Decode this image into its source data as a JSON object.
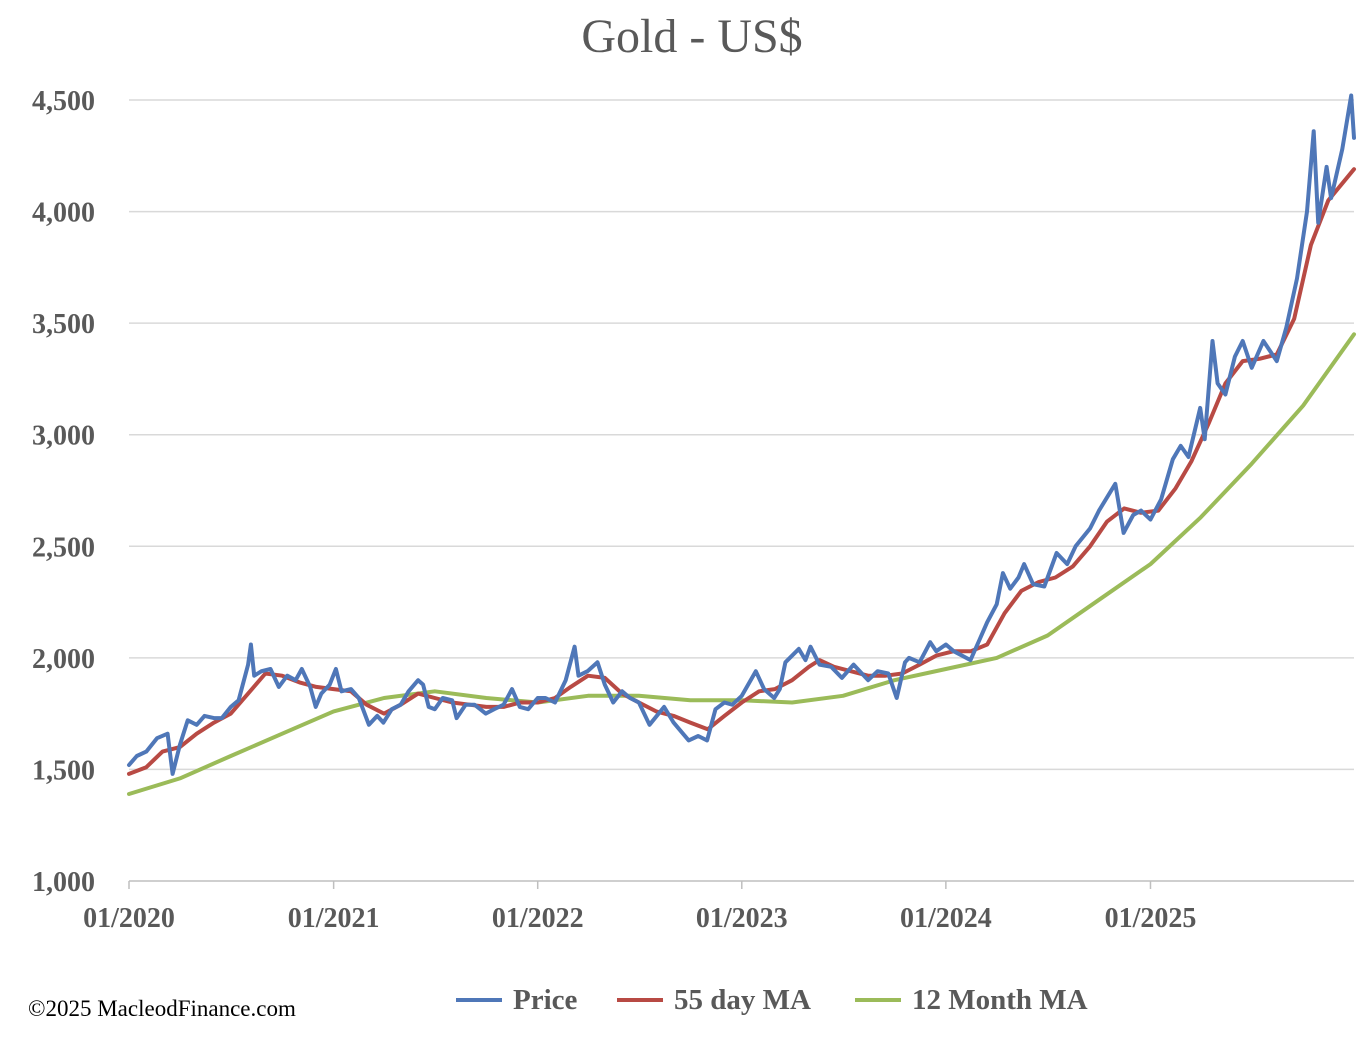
{
  "chart_data": {
    "type": "line",
    "title": "Gold - US$",
    "xlabel": "",
    "ylabel": "",
    "ylim": [
      1000,
      4500
    ],
    "yticks": [
      1000,
      1500,
      2000,
      2500,
      3000,
      3500,
      4000,
      4500
    ],
    "ytick_labels": [
      "1,000",
      "1,500",
      "2,000",
      "2,500",
      "3,000",
      "3,500",
      "4,000",
      "4,500"
    ],
    "xlim": [
      "2020-01-01",
      "2025-12-31"
    ],
    "xticks": [
      "2020-01-01",
      "2021-01-01",
      "2022-01-01",
      "2023-01-01",
      "2024-01-01",
      "2025-01-01"
    ],
    "xtick_labels": [
      "01/2020",
      "01/2021",
      "01/2022",
      "01/2023",
      "01/2024",
      "01/2025"
    ],
    "grid": "horizontal",
    "legend_position": "bottom",
    "series": [
      {
        "name": "Price",
        "color": "#4f77b8",
        "points": [
          [
            "2020-01-01",
            1520
          ],
          [
            "2020-01-15",
            1560
          ],
          [
            "2020-02-01",
            1580
          ],
          [
            "2020-02-20",
            1640
          ],
          [
            "2020-03-10",
            1660
          ],
          [
            "2020-03-19",
            1480
          ],
          [
            "2020-04-01",
            1610
          ],
          [
            "2020-04-15",
            1720
          ],
          [
            "2020-05-01",
            1700
          ],
          [
            "2020-05-15",
            1740
          ],
          [
            "2020-06-01",
            1730
          ],
          [
            "2020-06-15",
            1730
          ],
          [
            "2020-07-01",
            1780
          ],
          [
            "2020-07-15",
            1810
          ],
          [
            "2020-08-01",
            1970
          ],
          [
            "2020-08-06",
            2060
          ],
          [
            "2020-08-12",
            1920
          ],
          [
            "2020-08-25",
            1940
          ],
          [
            "2020-09-10",
            1950
          ],
          [
            "2020-09-25",
            1870
          ],
          [
            "2020-10-10",
            1920
          ],
          [
            "2020-10-25",
            1900
          ],
          [
            "2020-11-05",
            1950
          ],
          [
            "2020-11-20",
            1870
          ],
          [
            "2020-11-30",
            1780
          ],
          [
            "2020-12-10",
            1840
          ],
          [
            "2020-12-25",
            1880
          ],
          [
            "2021-01-05",
            1950
          ],
          [
            "2021-01-15",
            1850
          ],
          [
            "2021-02-01",
            1860
          ],
          [
            "2021-02-15",
            1820
          ],
          [
            "2021-03-05",
            1700
          ],
          [
            "2021-03-20",
            1740
          ],
          [
            "2021-03-31",
            1710
          ],
          [
            "2021-04-15",
            1770
          ],
          [
            "2021-05-01",
            1790
          ],
          [
            "2021-05-15",
            1850
          ],
          [
            "2021-06-01",
            1900
          ],
          [
            "2021-06-10",
            1880
          ],
          [
            "2021-06-20",
            1780
          ],
          [
            "2021-07-01",
            1770
          ],
          [
            "2021-07-15",
            1820
          ],
          [
            "2021-08-01",
            1810
          ],
          [
            "2021-08-09",
            1730
          ],
          [
            "2021-08-25",
            1790
          ],
          [
            "2021-09-10",
            1790
          ],
          [
            "2021-09-30",
            1750
          ],
          [
            "2021-10-15",
            1770
          ],
          [
            "2021-11-01",
            1790
          ],
          [
            "2021-11-16",
            1860
          ],
          [
            "2021-11-30",
            1780
          ],
          [
            "2021-12-15",
            1770
          ],
          [
            "2022-01-01",
            1820
          ],
          [
            "2022-01-15",
            1820
          ],
          [
            "2022-02-01",
            1800
          ],
          [
            "2022-02-20",
            1900
          ],
          [
            "2022-03-08",
            2050
          ],
          [
            "2022-03-15",
            1920
          ],
          [
            "2022-03-31",
            1940
          ],
          [
            "2022-04-18",
            1980
          ],
          [
            "2022-05-01",
            1880
          ],
          [
            "2022-05-16",
            1800
          ],
          [
            "2022-06-01",
            1850
          ],
          [
            "2022-06-15",
            1820
          ],
          [
            "2022-07-01",
            1800
          ],
          [
            "2022-07-20",
            1700
          ],
          [
            "2022-08-15",
            1780
          ],
          [
            "2022-09-01",
            1710
          ],
          [
            "2022-09-28",
            1630
          ],
          [
            "2022-10-15",
            1650
          ],
          [
            "2022-10-31",
            1630
          ],
          [
            "2022-11-15",
            1770
          ],
          [
            "2022-12-01",
            1800
          ],
          [
            "2022-12-15",
            1790
          ],
          [
            "2023-01-01",
            1830
          ],
          [
            "2023-01-26",
            1940
          ],
          [
            "2023-02-10",
            1860
          ],
          [
            "2023-02-28",
            1820
          ],
          [
            "2023-03-10",
            1860
          ],
          [
            "2023-03-20",
            1980
          ],
          [
            "2023-04-13",
            2040
          ],
          [
            "2023-04-25",
            1990
          ],
          [
            "2023-05-04",
            2050
          ],
          [
            "2023-05-20",
            1970
          ],
          [
            "2023-06-10",
            1960
          ],
          [
            "2023-06-29",
            1910
          ],
          [
            "2023-07-20",
            1970
          ],
          [
            "2023-08-15",
            1900
          ],
          [
            "2023-09-01",
            1940
          ],
          [
            "2023-09-20",
            1930
          ],
          [
            "2023-10-05",
            1820
          ],
          [
            "2023-10-20",
            1980
          ],
          [
            "2023-10-27",
            2000
          ],
          [
            "2023-11-15",
            1980
          ],
          [
            "2023-12-04",
            2070
          ],
          [
            "2023-12-15",
            2030
          ],
          [
            "2024-01-01",
            2060
          ],
          [
            "2024-01-15",
            2030
          ],
          [
            "2024-02-14",
            1990
          ],
          [
            "2024-03-01",
            2080
          ],
          [
            "2024-03-15",
            2160
          ],
          [
            "2024-04-01",
            2240
          ],
          [
            "2024-04-12",
            2380
          ],
          [
            "2024-04-25",
            2310
          ],
          [
            "2024-05-10",
            2360
          ],
          [
            "2024-05-20",
            2420
          ],
          [
            "2024-06-05",
            2330
          ],
          [
            "2024-06-25",
            2320
          ],
          [
            "2024-07-17",
            2470
          ],
          [
            "2024-08-05",
            2420
          ],
          [
            "2024-08-20",
            2500
          ],
          [
            "2024-09-15",
            2580
          ],
          [
            "2024-10-01",
            2660
          ],
          [
            "2024-10-30",
            2780
          ],
          [
            "2024-11-14",
            2560
          ],
          [
            "2024-12-01",
            2640
          ],
          [
            "2024-12-15",
            2660
          ],
          [
            "2025-01-01",
            2620
          ],
          [
            "2025-01-20",
            2710
          ],
          [
            "2025-02-10",
            2890
          ],
          [
            "2025-02-24",
            2950
          ],
          [
            "2025-03-10",
            2900
          ],
          [
            "2025-03-31",
            3120
          ],
          [
            "2025-04-08",
            2980
          ],
          [
            "2025-04-22",
            3420
          ],
          [
            "2025-05-01",
            3230
          ],
          [
            "2025-05-15",
            3180
          ],
          [
            "2025-06-01",
            3350
          ],
          [
            "2025-06-15",
            3420
          ],
          [
            "2025-07-01",
            3300
          ],
          [
            "2025-07-22",
            3420
          ],
          [
            "2025-08-15",
            3330
          ],
          [
            "2025-09-01",
            3480
          ],
          [
            "2025-09-20",
            3700
          ],
          [
            "2025-10-08",
            4000
          ],
          [
            "2025-10-20",
            4360
          ],
          [
            "2025-10-28",
            3950
          ],
          [
            "2025-11-12",
            4200
          ],
          [
            "2025-11-20",
            4060
          ],
          [
            "2025-12-10",
            4280
          ],
          [
            "2025-12-26",
            4520
          ],
          [
            "2025-12-31",
            4330
          ]
        ]
      },
      {
        "name": "55 day MA",
        "color": "#b84a44",
        "points": [
          [
            "2020-01-01",
            1480
          ],
          [
            "2020-02-01",
            1510
          ],
          [
            "2020-03-01",
            1580
          ],
          [
            "2020-04-01",
            1600
          ],
          [
            "2020-05-01",
            1660
          ],
          [
            "2020-06-01",
            1710
          ],
          [
            "2020-07-01",
            1750
          ],
          [
            "2020-08-01",
            1840
          ],
          [
            "2020-09-01",
            1930
          ],
          [
            "2020-10-01",
            1920
          ],
          [
            "2020-11-01",
            1890
          ],
          [
            "2020-12-01",
            1870
          ],
          [
            "2021-01-01",
            1860
          ],
          [
            "2021-02-01",
            1850
          ],
          [
            "2021-03-01",
            1790
          ],
          [
            "2021-04-01",
            1750
          ],
          [
            "2021-05-01",
            1790
          ],
          [
            "2021-06-01",
            1840
          ],
          [
            "2021-07-01",
            1820
          ],
          [
            "2021-08-01",
            1800
          ],
          [
            "2021-09-01",
            1790
          ],
          [
            "2021-10-01",
            1780
          ],
          [
            "2021-11-01",
            1780
          ],
          [
            "2021-12-01",
            1800
          ],
          [
            "2022-01-01",
            1800
          ],
          [
            "2022-02-01",
            1820
          ],
          [
            "2022-03-01",
            1870
          ],
          [
            "2022-04-01",
            1920
          ],
          [
            "2022-05-01",
            1910
          ],
          [
            "2022-06-01",
            1840
          ],
          [
            "2022-07-01",
            1800
          ],
          [
            "2022-08-01",
            1760
          ],
          [
            "2022-09-01",
            1740
          ],
          [
            "2022-10-01",
            1710
          ],
          [
            "2022-11-01",
            1680
          ],
          [
            "2022-12-01",
            1740
          ],
          [
            "2023-01-01",
            1800
          ],
          [
            "2023-02-01",
            1850
          ],
          [
            "2023-03-01",
            1860
          ],
          [
            "2023-04-01",
            1900
          ],
          [
            "2023-05-01",
            1960
          ],
          [
            "2023-05-20",
            1990
          ],
          [
            "2023-06-15",
            1960
          ],
          [
            "2023-07-15",
            1940
          ],
          [
            "2023-08-15",
            1920
          ],
          [
            "2023-09-15",
            1920
          ],
          [
            "2023-10-15",
            1930
          ],
          [
            "2023-11-15",
            1970
          ],
          [
            "2023-12-15",
            2010
          ],
          [
            "2024-01-15",
            2030
          ],
          [
            "2024-02-15",
            2030
          ],
          [
            "2024-03-15",
            2060
          ],
          [
            "2024-04-15",
            2200
          ],
          [
            "2024-05-15",
            2300
          ],
          [
            "2024-06-15",
            2340
          ],
          [
            "2024-07-15",
            2360
          ],
          [
            "2024-08-15",
            2410
          ],
          [
            "2024-09-15",
            2500
          ],
          [
            "2024-10-15",
            2610
          ],
          [
            "2024-11-15",
            2670
          ],
          [
            "2024-12-15",
            2650
          ],
          [
            "2025-01-15",
            2660
          ],
          [
            "2025-02-15",
            2760
          ],
          [
            "2025-03-15",
            2880
          ],
          [
            "2025-04-15",
            3050
          ],
          [
            "2025-05-15",
            3230
          ],
          [
            "2025-06-15",
            3330
          ],
          [
            "2025-07-15",
            3340
          ],
          [
            "2025-08-15",
            3360
          ],
          [
            "2025-09-15",
            3520
          ],
          [
            "2025-10-15",
            3850
          ],
          [
            "2025-11-15",
            4050
          ],
          [
            "2025-12-31",
            4190
          ]
        ]
      },
      {
        "name": "12 Month MA",
        "color": "#9bbb59",
        "points": [
          [
            "2020-01-01",
            1390
          ],
          [
            "2020-04-01",
            1460
          ],
          [
            "2020-07-01",
            1560
          ],
          [
            "2020-10-01",
            1660
          ],
          [
            "2021-01-01",
            1760
          ],
          [
            "2021-04-01",
            1820
          ],
          [
            "2021-07-01",
            1850
          ],
          [
            "2021-10-01",
            1820
          ],
          [
            "2022-01-01",
            1800
          ],
          [
            "2022-04-01",
            1830
          ],
          [
            "2022-07-01",
            1830
          ],
          [
            "2022-10-01",
            1810
          ],
          [
            "2023-01-01",
            1810
          ],
          [
            "2023-04-01",
            1800
          ],
          [
            "2023-07-01",
            1830
          ],
          [
            "2023-10-01",
            1900
          ],
          [
            "2024-01-01",
            1950
          ],
          [
            "2024-04-01",
            2000
          ],
          [
            "2024-07-01",
            2100
          ],
          [
            "2024-10-01",
            2260
          ],
          [
            "2025-01-01",
            2420
          ],
          [
            "2025-04-01",
            2630
          ],
          [
            "2025-07-01",
            2870
          ],
          [
            "2025-10-01",
            3130
          ],
          [
            "2025-12-31",
            3450
          ]
        ]
      }
    ]
  },
  "footer": {
    "copyright": "©2025 MacleodFinance.com"
  }
}
